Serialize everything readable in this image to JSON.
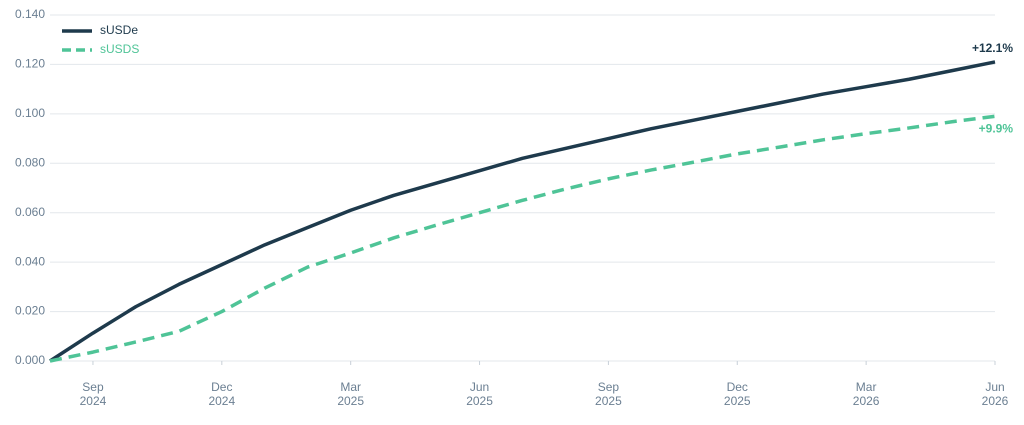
{
  "chart_data": {
    "type": "line",
    "x": [
      "2024-08",
      "2024-09",
      "2024-10",
      "2024-11",
      "2024-12",
      "2025-01",
      "2025-02",
      "2025-03",
      "2025-04",
      "2025-05",
      "2025-06",
      "2025-07",
      "2025-08",
      "2025-09",
      "2025-10",
      "2025-11",
      "2025-12",
      "2026-01",
      "2026-02",
      "2026-03",
      "2026-04",
      "2026-05",
      "2026-06"
    ],
    "series": [
      {
        "name": "sUSDe",
        "color": "#1e3a4c",
        "dash": false,
        "end_label": "+12.1%",
        "values": [
          0,
          0.0113,
          0.022,
          0.031,
          0.039,
          0.047,
          0.054,
          0.061,
          0.067,
          0.072,
          0.077,
          0.082,
          0.086,
          0.09,
          0.094,
          0.0975,
          0.101,
          0.1045,
          0.108,
          0.111,
          0.114,
          0.1175,
          0.121
        ]
      },
      {
        "name": "sUSDS",
        "color": "#4fc497",
        "dash": true,
        "end_label": "+9.9%",
        "values": [
          0,
          0.0036,
          0.0077,
          0.012,
          0.02,
          0.0295,
          0.038,
          0.0437,
          0.0498,
          0.055,
          0.06,
          0.065,
          0.0696,
          0.0737,
          0.0773,
          0.0805,
          0.0838,
          0.0866,
          0.0895,
          0.092,
          0.0943,
          0.0968,
          0.099
        ]
      }
    ],
    "xlim": [
      "2024-08",
      "2026-06"
    ],
    "xticks": [
      {
        "value": "2024-09",
        "label": "Sep 2024"
      },
      {
        "value": "2024-12",
        "label": "Dec 2024"
      },
      {
        "value": "2025-03",
        "label": "Mar 2025"
      },
      {
        "value": "2025-06",
        "label": "Jun 2025"
      },
      {
        "value": "2025-09",
        "label": "Sep 2025"
      },
      {
        "value": "2025-12",
        "label": "Dec 2025"
      },
      {
        "value": "2026-03",
        "label": "Mar 2026"
      },
      {
        "value": "2026-06",
        "label": "Jun 2026"
      }
    ],
    "ylim": [
      0,
      0.14
    ],
    "yticks": [
      {
        "value": 0,
        "label": "0.000"
      },
      {
        "value": 0.02,
        "label": "0.020"
      },
      {
        "value": 0.04,
        "label": "0.040"
      },
      {
        "value": 0.06,
        "label": "0.060"
      },
      {
        "value": 0.08,
        "label": "0.080"
      },
      {
        "value": 0.1,
        "label": "0.100"
      },
      {
        "value": 0.12,
        "label": "0.120"
      },
      {
        "value": 0.14,
        "label": "0.140"
      }
    ],
    "grid": true,
    "legend": "top-left"
  }
}
